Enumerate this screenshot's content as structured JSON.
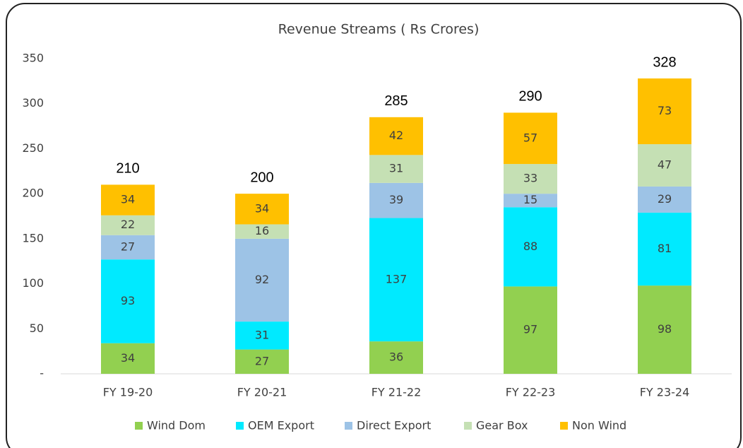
{
  "chart_data": {
    "type": "stacked_bar",
    "title": "Revenue Streams ( Rs Crores)",
    "categories": [
      "FY 19-20",
      "FY 20-21",
      "FY 21-22",
      "FY 22-23",
      "FY 23-24"
    ],
    "series": [
      {
        "name": "Wind Dom",
        "color": "#92d050",
        "values": [
          34,
          27,
          36,
          97,
          98
        ]
      },
      {
        "name": "OEM Export",
        "color": "#00eaff",
        "values": [
          93,
          31,
          137,
          88,
          81
        ]
      },
      {
        "name": "Direct Export",
        "color": "#9dc3e6",
        "values": [
          27,
          92,
          39,
          15,
          29
        ]
      },
      {
        "name": "Gear Box",
        "color": "#c5e0b4",
        "values": [
          22,
          16,
          31,
          33,
          47
        ]
      },
      {
        "name": "Non Wind",
        "color": "#ffc000",
        "values": [
          34,
          34,
          42,
          57,
          73
        ]
      }
    ],
    "totals": [
      210,
      200,
      285,
      290,
      328
    ],
    "ylim": [
      0,
      350
    ],
    "yticks": [
      {
        "value": 0,
        "label": "-"
      },
      50,
      100,
      150,
      200,
      250,
      300,
      350
    ],
    "grid": false,
    "legend": "bottom"
  }
}
